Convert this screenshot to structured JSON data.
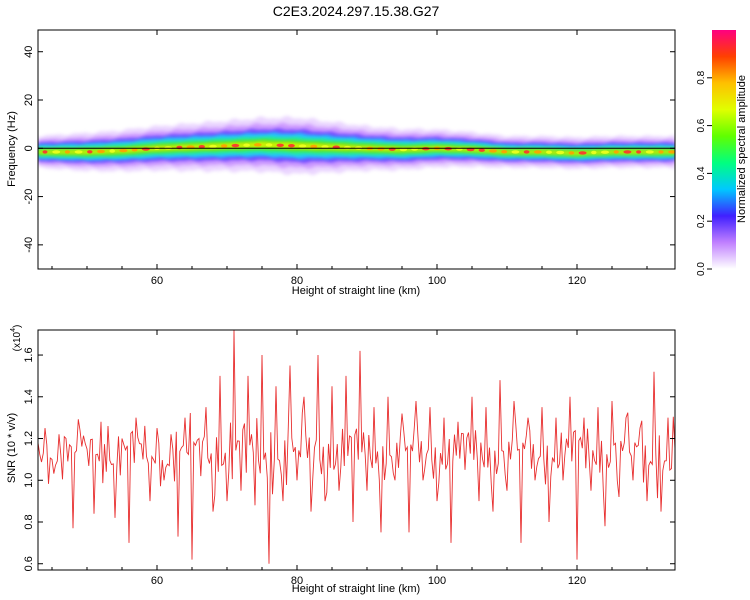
{
  "title": "C2E3.2024.297.15.38.G27",
  "chart_data": [
    {
      "type": "heatmap",
      "xlabel": "Height of straight line (km)",
      "ylabel": "Frequency (Hz)",
      "xlim": [
        43,
        134
      ],
      "ylim": [
        -50,
        49
      ],
      "xticks": [
        60,
        80,
        100,
        120
      ],
      "yticks": [
        -40,
        -20,
        0,
        20,
        40
      ],
      "band_center_hz": [
        {
          "x": 43,
          "y": -1.5
        },
        {
          "x": 50,
          "y": -1.5
        },
        {
          "x": 55,
          "y": -1.0
        },
        {
          "x": 60,
          "y": 0.0
        },
        {
          "x": 65,
          "y": 0.5
        },
        {
          "x": 70,
          "y": 1.0
        },
        {
          "x": 75,
          "y": 1.5
        },
        {
          "x": 80,
          "y": 1.0
        },
        {
          "x": 85,
          "y": 0.5
        },
        {
          "x": 90,
          "y": 0.0
        },
        {
          "x": 95,
          "y": -0.5
        },
        {
          "x": 100,
          "y": 0.0
        },
        {
          "x": 105,
          "y": -0.5
        },
        {
          "x": 110,
          "y": -1.5
        },
        {
          "x": 115,
          "y": -1.5
        },
        {
          "x": 120,
          "y": -2.0
        },
        {
          "x": 125,
          "y": -1.5
        },
        {
          "x": 134,
          "y": -1.5
        }
      ],
      "band_halfwidth_hz": [
        {
          "x": 43,
          "y": 2.5
        },
        {
          "x": 50,
          "y": 3.0
        },
        {
          "x": 60,
          "y": 3.5
        },
        {
          "x": 70,
          "y": 4.0
        },
        {
          "x": 80,
          "y": 4.5
        },
        {
          "x": 90,
          "y": 3.5
        },
        {
          "x": 100,
          "y": 3.0
        },
        {
          "x": 110,
          "y": 2.5
        },
        {
          "x": 120,
          "y": 2.5
        },
        {
          "x": 134,
          "y": 2.5
        }
      ],
      "colorbar": {
        "label": "Normalized spectral amplitude",
        "range": [
          0,
          1
        ],
        "ticks": [
          "0.0",
          "0.2",
          "0.4",
          "0.6",
          "0.8"
        ],
        "colors": [
          "#ffffff",
          "#c080ff",
          "#4020ff",
          "#00c8ff",
          "#00ff80",
          "#60ff00",
          "#e0ff00",
          "#ffc000",
          "#ff4000",
          "#ff0080"
        ]
      }
    },
    {
      "type": "line",
      "xlabel": "Height of straight line (km)",
      "ylabel": "SNR (10 * v/v)",
      "y_multiplier": "(x10",
      "y_multiplier_exp": "4",
      "xlim": [
        43,
        134
      ],
      "ylim": [
        0.57,
        1.72
      ],
      "xticks": [
        60,
        80,
        100,
        120
      ],
      "yticks": [
        "0.6",
        "0.8",
        "1.0",
        "1.2",
        "1.4",
        "1.6"
      ],
      "line_color": "#e83030",
      "series": [
        {
          "x": 43,
          "y": 1.18
        },
        {
          "x": 44,
          "y": 1.25
        },
        {
          "x": 45,
          "y": 1.1
        },
        {
          "x": 46,
          "y": 1.22
        },
        {
          "x": 47,
          "y": 1.2
        },
        {
          "x": 48,
          "y": 0.77
        },
        {
          "x": 49,
          "y": 1.24
        },
        {
          "x": 50,
          "y": 1.15
        },
        {
          "x": 51,
          "y": 0.84
        },
        {
          "x": 52,
          "y": 1.28
        },
        {
          "x": 53,
          "y": 1.26
        },
        {
          "x": 54,
          "y": 0.82
        },
        {
          "x": 55,
          "y": 1.2
        },
        {
          "x": 56,
          "y": 0.7
        },
        {
          "x": 57,
          "y": 1.3
        },
        {
          "x": 58,
          "y": 1.1
        },
        {
          "x": 59,
          "y": 0.9
        },
        {
          "x": 60,
          "y": 1.25
        },
        {
          "x": 61,
          "y": 1.0
        },
        {
          "x": 62,
          "y": 1.22
        },
        {
          "x": 63,
          "y": 0.73
        },
        {
          "x": 64,
          "y": 1.3
        },
        {
          "x": 65,
          "y": 0.62
        },
        {
          "x": 66,
          "y": 1.2
        },
        {
          "x": 67,
          "y": 1.35
        },
        {
          "x": 68,
          "y": 0.85
        },
        {
          "x": 69,
          "y": 1.5
        },
        {
          "x": 70,
          "y": 0.9
        },
        {
          "x": 71,
          "y": 1.72
        },
        {
          "x": 72,
          "y": 0.95
        },
        {
          "x": 73,
          "y": 1.5
        },
        {
          "x": 74,
          "y": 0.88
        },
        {
          "x": 75,
          "y": 1.6
        },
        {
          "x": 76,
          "y": 0.6
        },
        {
          "x": 77,
          "y": 1.45
        },
        {
          "x": 78,
          "y": 0.9
        },
        {
          "x": 79,
          "y": 1.55
        },
        {
          "x": 80,
          "y": 1.0
        },
        {
          "x": 81,
          "y": 1.4
        },
        {
          "x": 82,
          "y": 0.85
        },
        {
          "x": 83,
          "y": 1.6
        },
        {
          "x": 84,
          "y": 0.9
        },
        {
          "x": 85,
          "y": 1.45
        },
        {
          "x": 86,
          "y": 0.95
        },
        {
          "x": 87,
          "y": 1.5
        },
        {
          "x": 88,
          "y": 0.8
        },
        {
          "x": 89,
          "y": 1.62
        },
        {
          "x": 90,
          "y": 0.95
        },
        {
          "x": 91,
          "y": 1.35
        },
        {
          "x": 92,
          "y": 0.75
        },
        {
          "x": 93,
          "y": 1.4
        },
        {
          "x": 94,
          "y": 1.0
        },
        {
          "x": 95,
          "y": 1.32
        },
        {
          "x": 96,
          "y": 0.75
        },
        {
          "x": 97,
          "y": 1.38
        },
        {
          "x": 98,
          "y": 1.0
        },
        {
          "x": 99,
          "y": 1.35
        },
        {
          "x": 100,
          "y": 0.9
        },
        {
          "x": 101,
          "y": 1.3
        },
        {
          "x": 102,
          "y": 0.7
        },
        {
          "x": 103,
          "y": 1.28
        },
        {
          "x": 104,
          "y": 1.05
        },
        {
          "x": 105,
          "y": 1.4
        },
        {
          "x": 106,
          "y": 0.9
        },
        {
          "x": 107,
          "y": 1.35
        },
        {
          "x": 108,
          "y": 0.85
        },
        {
          "x": 109,
          "y": 1.48
        },
        {
          "x": 110,
          "y": 0.95
        },
        {
          "x": 111,
          "y": 1.38
        },
        {
          "x": 112,
          "y": 0.7
        },
        {
          "x": 113,
          "y": 1.3
        },
        {
          "x": 114,
          "y": 1.0
        },
        {
          "x": 115,
          "y": 1.35
        },
        {
          "x": 116,
          "y": 0.8
        },
        {
          "x": 117,
          "y": 1.3
        },
        {
          "x": 118,
          "y": 1.0
        },
        {
          "x": 119,
          "y": 1.4
        },
        {
          "x": 120,
          "y": 0.62
        },
        {
          "x": 121,
          "y": 1.3
        },
        {
          "x": 122,
          "y": 0.95
        },
        {
          "x": 123,
          "y": 1.35
        },
        {
          "x": 124,
          "y": 0.78
        },
        {
          "x": 125,
          "y": 1.38
        },
        {
          "x": 126,
          "y": 0.92
        },
        {
          "x": 127,
          "y": 1.3
        },
        {
          "x": 128,
          "y": 1.0
        },
        {
          "x": 129,
          "y": 1.25
        },
        {
          "x": 130,
          "y": 0.9
        },
        {
          "x": 131,
          "y": 1.52
        },
        {
          "x": 132,
          "y": 0.85
        },
        {
          "x": 133,
          "y": 1.3
        },
        {
          "x": 134,
          "y": 1.15
        }
      ]
    }
  ]
}
